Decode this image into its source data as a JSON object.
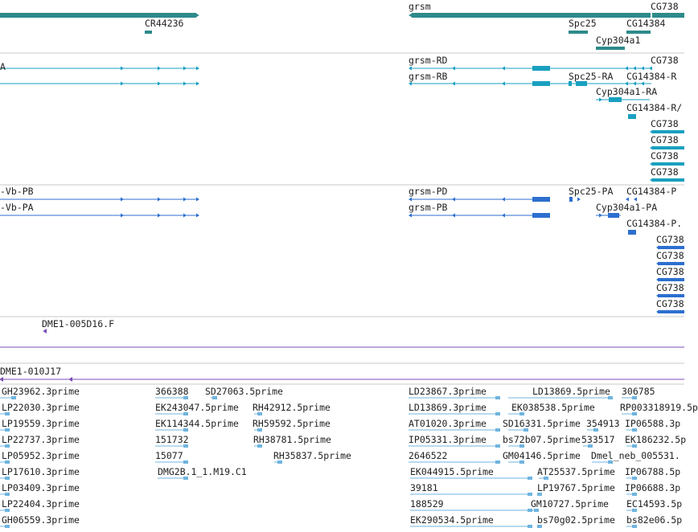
{
  "colors": {
    "gene": "#2e8a8a",
    "transcript": "#1aa0c0",
    "protein": "#2d6fcf",
    "clone": "#7a4db5",
    "est": "#6fb4df",
    "divider": "#c8c8c8"
  },
  "genes": [
    {
      "label": "grsm"
    },
    {
      "label": "CG738"
    },
    {
      "label": "CR44236"
    },
    {
      "label": "Spc25"
    },
    {
      "label": "CG14384"
    },
    {
      "label": "Cyp304a1"
    }
  ],
  "transcripts": [
    {
      "label": "A"
    },
    {
      "label": "grsm-RD"
    },
    {
      "label": "CG738"
    },
    {
      "label": "grsm-RB"
    },
    {
      "label": "Spc25-RA"
    },
    {
      "label": "CG14384-R"
    },
    {
      "label": "Cyp304a1-RA"
    },
    {
      "label": "CG14384-R/"
    },
    {
      "label": "CG738"
    },
    {
      "label": "CG738"
    },
    {
      "label": "CG738"
    },
    {
      "label": "CG738"
    }
  ],
  "proteins": [
    {
      "label": "-Vb-PB"
    },
    {
      "label": "grsm-PD"
    },
    {
      "label": "Spc25-PA"
    },
    {
      "label": "CG14384-P"
    },
    {
      "label": "-Vb-PA"
    },
    {
      "label": "grsm-PB"
    },
    {
      "label": "Cyp304a1-PA"
    },
    {
      "label": "CG14384-P."
    },
    {
      "label": "CG738"
    },
    {
      "label": "CG738"
    },
    {
      "label": "CG738"
    },
    {
      "label": "CG738"
    },
    {
      "label": "CG738"
    }
  ],
  "clones": [
    {
      "label": "DME1-005D16.F"
    },
    {
      "label": "DME1-010J17"
    }
  ],
  "ests": [
    {
      "label": "GH23962.3prime"
    },
    {
      "label": "366388"
    },
    {
      "label": "SD27063.5prime"
    },
    {
      "label": "LD23867.3prime"
    },
    {
      "label": "LD13869.5prime"
    },
    {
      "label": "306785"
    },
    {
      "label": "LP22030.3prime"
    },
    {
      "label": "EK243047.5prime"
    },
    {
      "label": "RH42912.5prime"
    },
    {
      "label": "LD13869.3prime"
    },
    {
      "label": "EK038538.5prime"
    },
    {
      "label": "RP003318919.5p"
    },
    {
      "label": "LP19559.3prime"
    },
    {
      "label": "EK114344.5prime"
    },
    {
      "label": "RH59592.5prime"
    },
    {
      "label": "AT01020.3prime"
    },
    {
      "label": "SD16331.5prime"
    },
    {
      "label": "354913"
    },
    {
      "label": "IP06588.3p"
    },
    {
      "label": "LP22737.3prime"
    },
    {
      "label": "151732"
    },
    {
      "label": "RH38781.5prime"
    },
    {
      "label": "IP05331.3prime"
    },
    {
      "label": "bs72b07.5prime"
    },
    {
      "label": "533517"
    },
    {
      "label": "EK186232.5p"
    },
    {
      "label": "LP05952.3prime"
    },
    {
      "label": "15077"
    },
    {
      "label": "RH35837.5prime"
    },
    {
      "label": "2646522"
    },
    {
      "label": "GM04146.5prime"
    },
    {
      "label": "Dmel_neb_005531."
    },
    {
      "label": "LP17610.3prime"
    },
    {
      "label": "DMG2B.1_1.M19.C1"
    },
    {
      "label": "EK044915.5prime"
    },
    {
      "label": "AT25537.5prime"
    },
    {
      "label": "IP06788.5p"
    },
    {
      "label": "LP03409.3prime"
    },
    {
      "label": "39181"
    },
    {
      "label": "LP19767.5prime"
    },
    {
      "label": "IP06688.3p"
    },
    {
      "label": "LP22404.3prime"
    },
    {
      "label": "188529"
    },
    {
      "label": "GM10727.5prime"
    },
    {
      "label": "EC14593.5p"
    },
    {
      "label": "GH06559.3prime"
    },
    {
      "label": "EK290534.5prime"
    },
    {
      "label": "bs70g02.5prime"
    },
    {
      "label": "bs82e06.5p"
    }
  ]
}
